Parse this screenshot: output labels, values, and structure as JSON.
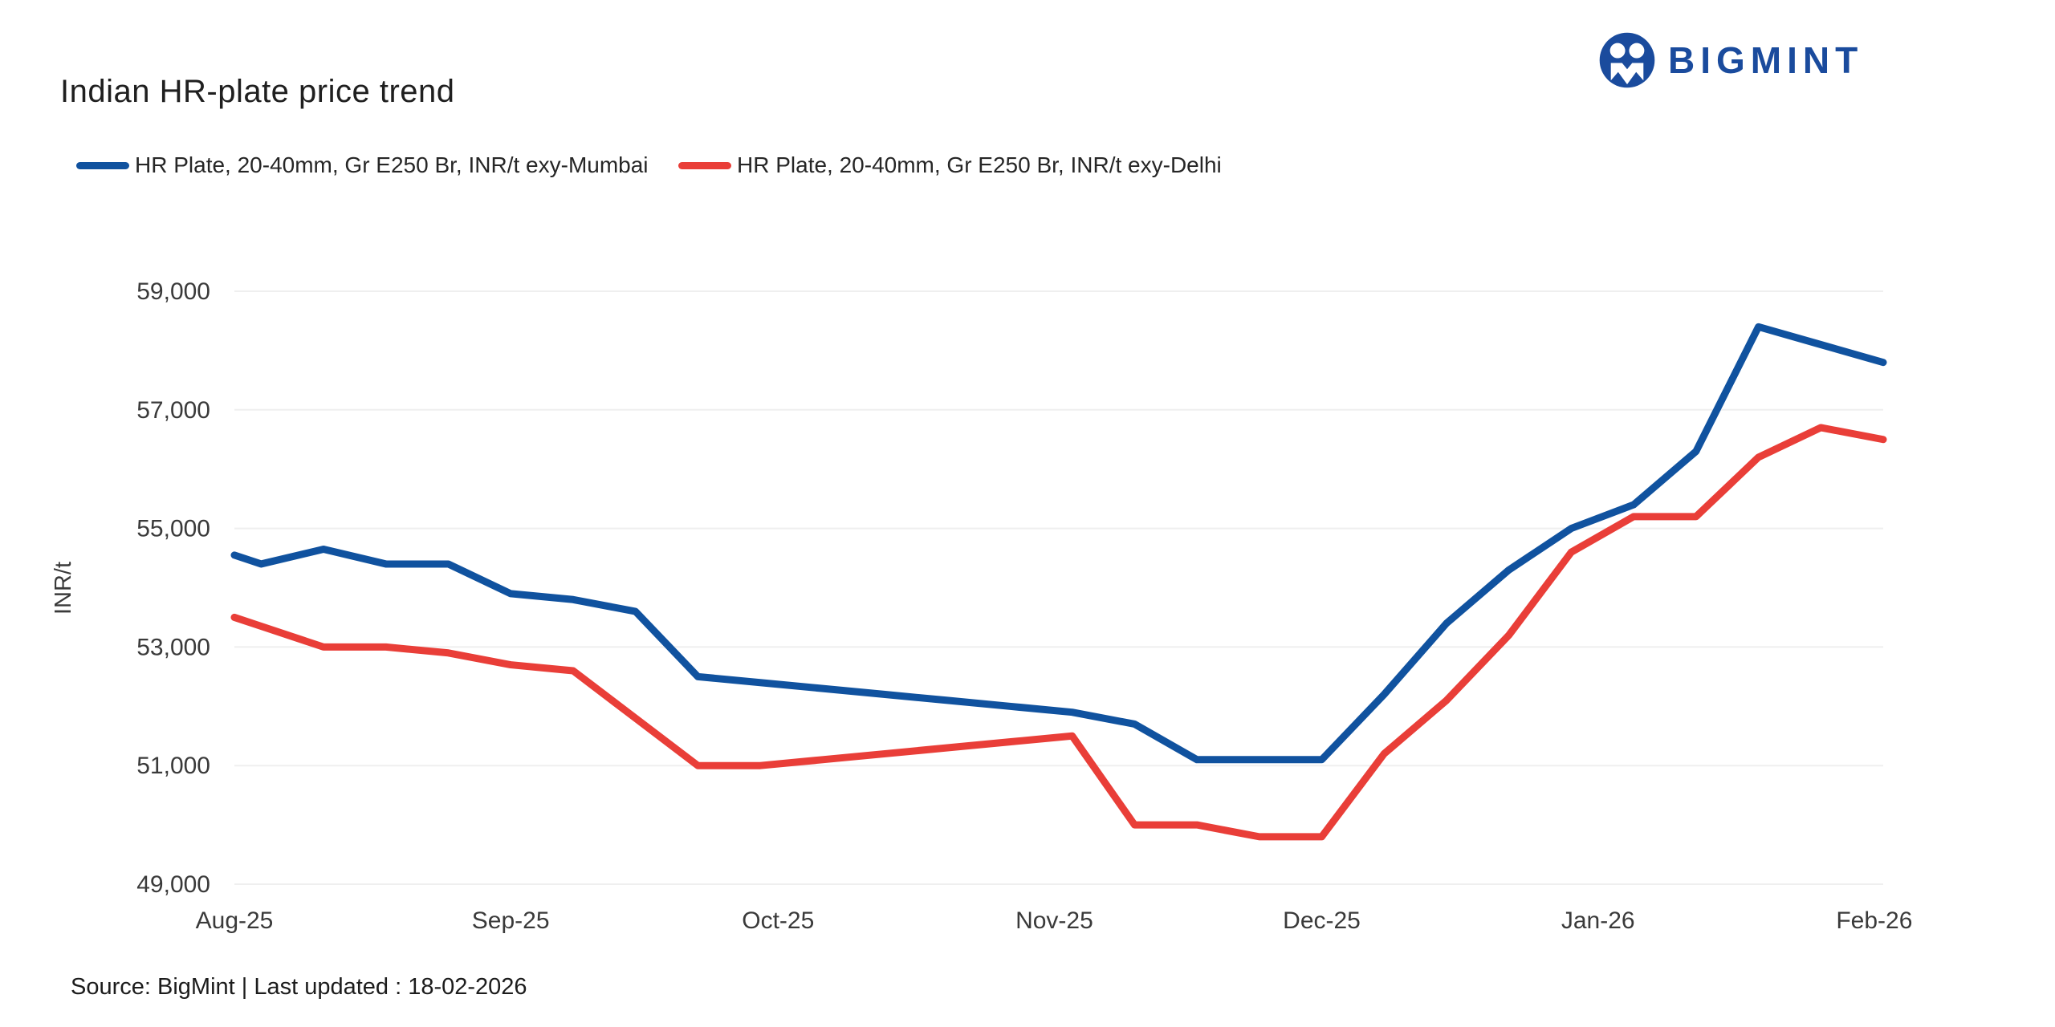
{
  "header": {
    "title": "Indian HR-plate price trend",
    "brand": "BIGMINT"
  },
  "legend": {
    "items": [
      {
        "label": "HR Plate, 20-40mm, Gr E250 Br, INR/t exy-Mumbai",
        "color": "#10529F"
      },
      {
        "label": "HR Plate, 20-40mm, Gr E250 Br, INR/t exy-Delhi",
        "color": "#E93E38"
      }
    ]
  },
  "footer": {
    "source": "Source: BigMint | Last updated : 18-02-2026"
  },
  "colors": {
    "mumbai_line": "#10529F",
    "delhi_line": "#E93E38",
    "brand_blue": "#1A4B9D",
    "gridline": "#efefef",
    "tick_text": "#3a3a3a"
  },
  "chart_data": {
    "type": "line",
    "title": "Indian HR-plate price trend",
    "xlabel": "",
    "ylabel": "INR/t",
    "ylim": [
      49000,
      59000
    ],
    "ytick_step": 2000,
    "yticks": [
      49000,
      51000,
      53000,
      55000,
      57000,
      59000
    ],
    "grid": true,
    "legend_position": "top-left",
    "x": [
      "01-Aug-25",
      "04-Aug-25",
      "11-Aug-25",
      "18-Aug-25",
      "25-Aug-25",
      "01-Sep-25",
      "08-Sep-25",
      "15-Sep-25",
      "22-Sep-25",
      "29-Sep-25",
      "06-Oct-25",
      "13-Oct-25",
      "20-Oct-25",
      "27-Oct-25",
      "03-Nov-25",
      "10-Nov-25",
      "17-Nov-25",
      "24-Nov-25",
      "01-Dec-25",
      "08-Dec-25",
      "15-Dec-25",
      "22-Dec-25",
      "29-Dec-25",
      "05-Jan-26",
      "12-Jan-26",
      "19-Jan-26",
      "26-Jan-26",
      "02-Feb-26"
    ],
    "x_day_offsets": [
      0,
      3,
      10,
      17,
      24,
      31,
      38,
      45,
      52,
      59,
      66,
      73,
      80,
      87,
      94,
      101,
      108,
      115,
      122,
      129,
      136,
      143,
      150,
      157,
      164,
      171,
      178,
      185
    ],
    "x_axis_ticks": [
      {
        "label": "Aug-25",
        "day": 0
      },
      {
        "label": "Sep-25",
        "day": 31
      },
      {
        "label": "Oct-25",
        "day": 61
      },
      {
        "label": "Nov-25",
        "day": 92
      },
      {
        "label": "Dec-25",
        "day": 122
      },
      {
        "label": "Jan-26",
        "day": 153
      },
      {
        "label": "Feb-26",
        "day": 184
      }
    ],
    "series": [
      {
        "name": "HR Plate, 20-40mm, Gr E250 Br, INR/t exy-Mumbai",
        "color": "#10529F",
        "values": [
          54550,
          54400,
          54650,
          54400,
          54400,
          53900,
          53800,
          53600,
          52500,
          52400,
          52300,
          52200,
          52100,
          52000,
          51900,
          51700,
          51100,
          51100,
          51100,
          52200,
          53400,
          54300,
          55000,
          55400,
          56300,
          58400,
          58100,
          57800
        ]
      },
      {
        "name": "HR Plate, 20-40mm, Gr E250 Br, INR/t exy-Delhi",
        "color": "#E93E38",
        "values": [
          53500,
          53350,
          53000,
          53000,
          52900,
          52700,
          52600,
          51800,
          51000,
          51000,
          51100,
          51200,
          51300,
          51400,
          51500,
          50000,
          50000,
          49800,
          49800,
          51200,
          52100,
          53200,
          54600,
          55200,
          55200,
          56200,
          56700,
          56500
        ]
      }
    ]
  }
}
